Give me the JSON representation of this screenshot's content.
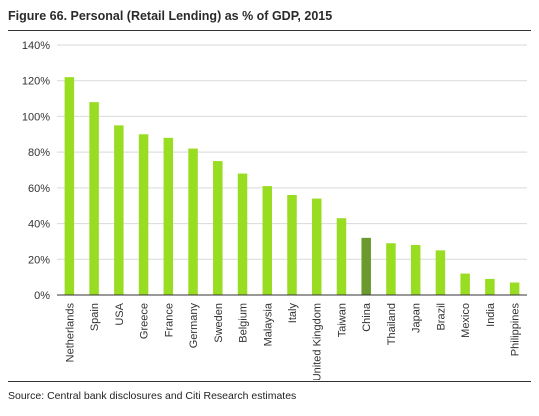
{
  "title": "Figure 66. Personal (Retail Lending) as % of GDP, 2015",
  "source": "Source: Central bank disclosures and Citi Research estimates",
  "chart_data": {
    "type": "bar",
    "categories": [
      "Netherlands",
      "Spain",
      "USA",
      "Greece",
      "France",
      "Germany",
      "Sweden",
      "Belgium",
      "Malaysia",
      "Italy",
      "United Kingdom",
      "Taiwan",
      "China",
      "Thailand",
      "Japan",
      "Brazil",
      "Mexico",
      "India",
      "Philippines"
    ],
    "values": [
      122,
      108,
      95,
      90,
      88,
      82,
      75,
      68,
      61,
      56,
      54,
      43,
      32,
      29,
      28,
      25,
      12,
      9,
      7
    ],
    "yticks": [
      "0%",
      "20%",
      "40%",
      "60%",
      "80%",
      "100%",
      "120%",
      "140%"
    ],
    "ylim": [
      0,
      140
    ],
    "ytick_step": 20,
    "grid": "horizontal",
    "xlabel": "",
    "ylabel": "",
    "colors": {
      "bar": "#99dd22",
      "highlight": "#6a9a2e",
      "grid": "#d9d9d9",
      "axis": "#333333"
    },
    "highlight_category": "China"
  }
}
